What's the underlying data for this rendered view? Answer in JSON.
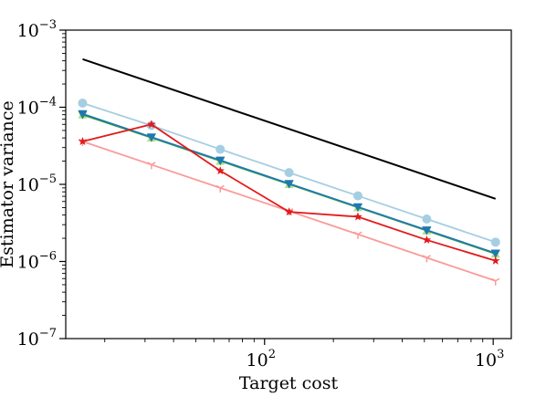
{
  "chart_data": {
    "type": "line",
    "title": "",
    "xlabel": "Target cost",
    "ylabel": "Estimator variance",
    "xscale": "log",
    "yscale": "log",
    "xlim": [
      13.5,
      1200
    ],
    "ylim": [
      1e-07,
      0.001
    ],
    "grid": false,
    "x_ticks": [
      {
        "value": 100,
        "base": "10",
        "exp": "2"
      },
      {
        "value": 1000,
        "base": "10",
        "exp": "3"
      }
    ],
    "y_ticks": [
      {
        "value": 1e-07,
        "base": "10",
        "exp": "−7"
      },
      {
        "value": 1e-06,
        "base": "10",
        "exp": "−6"
      },
      {
        "value": 1e-05,
        "base": "10",
        "exp": "−5"
      },
      {
        "value": 0.0001,
        "base": "10",
        "exp": "−4"
      },
      {
        "value": 0.001,
        "base": "10",
        "exp": "−3"
      }
    ],
    "x": [
      16,
      32,
      64,
      128,
      256,
      512,
      1024
    ],
    "series": [
      {
        "color": "#000000",
        "marker": "none",
        "width": 2,
        "x": [
          16,
          1024
        ],
        "values": [
          0.00042,
          6.5e-06
        ]
      },
      {
        "color": "#a6cee3",
        "marker": "circle",
        "width": 1.8,
        "values": [
          0.000113,
          5.8e-05,
          2.85e-05,
          1.42e-05,
          7.1e-06,
          3.55e-06,
          1.78e-06
        ]
      },
      {
        "color": "#b2df8a",
        "marker": "triangle-up",
        "width": 1.8,
        "values": [
          8e-05,
          4e-05,
          2e-05,
          1e-05,
          5e-06,
          2.5e-06,
          1.25e-06
        ]
      },
      {
        "color": "#33a02c",
        "marker": "triangle-down",
        "width": 1.8,
        "values": [
          8e-05,
          4.05e-05,
          2.02e-05,
          1.01e-05,
          5.05e-06,
          2.52e-06,
          1.26e-06
        ]
      },
      {
        "color": "#1f78b4",
        "marker": "triangle-down",
        "width": 1.8,
        "values": [
          8.2e-05,
          4.1e-05,
          2.05e-05,
          1.02e-05,
          5.1e-06,
          2.55e-06,
          1.28e-06
        ]
      },
      {
        "color": "#fb9a99",
        "marker": "tri-down",
        "width": 1.8,
        "values": [
          3.6e-05,
          1.8e-05,
          9e-06,
          4.5e-06,
          2.25e-06,
          1.12e-06,
          5.6e-07
        ]
      },
      {
        "color": "#e31a1c",
        "marker": "star",
        "width": 1.8,
        "values": [
          3.6e-05,
          6e-05,
          1.5e-05,
          4.4e-06,
          3.8e-06,
          1.9e-06,
          1.02e-06
        ]
      }
    ]
  }
}
